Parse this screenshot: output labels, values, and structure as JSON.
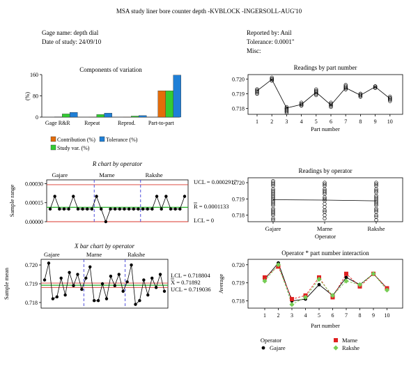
{
  "header": {
    "title": "MSA study liner bore counter depth -KVBLOCK -INGERSOLL-AUG'10",
    "gage_name": "Gage name: depth dial",
    "date_of_study": "Date of study: 24/09/10",
    "reported_by": "Reported by: Anil",
    "tolerance": "Tolerance: 0.0001\"",
    "misc": "Misc:"
  },
  "colors": {
    "contribution": "#e36c0a",
    "study_var": "#33cc33",
    "tolerance": "#1f7fd6",
    "control_limit": "#d9342b",
    "center_line": "#22aa22",
    "divider": "#3a3ad6",
    "marne": "#e02020",
    "rakshe": "#77cc55"
  },
  "chart_data": [
    {
      "id": "components",
      "type": "bar",
      "title": "Components of variation",
      "ylabel": "(%)",
      "ylim": [
        0,
        160
      ],
      "yticks": [
        "0",
        "80",
        "160"
      ],
      "categories": [
        "Gage R&R",
        "Repeat",
        "Reprod.",
        "Part-to-part"
      ],
      "series": [
        {
          "name": "Contribution (%)",
          "color_key": "contribution",
          "values": [
            1,
            0.5,
            0.3,
            99
          ]
        },
        {
          "name": "Study var. (%)",
          "color_key": "study_var",
          "values": [
            12,
            10,
            4,
            99
          ]
        },
        {
          "name": "Tolerance (%)",
          "color_key": "tolerance",
          "values": [
            18,
            15,
            6,
            158
          ]
        }
      ]
    },
    {
      "id": "readings_by_part",
      "type": "scatter",
      "title": "Readings by part number",
      "xlabel": "Part number",
      "xticks": [
        "1",
        "2",
        "3",
        "4",
        "5",
        "6",
        "7",
        "8",
        "9",
        "10"
      ],
      "yticks": [
        "0.718",
        "0.719",
        "0.720"
      ],
      "ylim": [
        0.7176,
        0.7203
      ],
      "means": [
        0.7192,
        0.71997,
        0.71803,
        0.71827,
        0.7191,
        0.71823,
        0.7194,
        0.7189,
        0.71947,
        0.71867
      ],
      "points": [
        [
          0.719,
          0.7191,
          0.7192,
          0.7192,
          0.7193,
          0.7193,
          0.7192,
          0.7191,
          0.719
        ],
        [
          0.7199,
          0.72,
          0.72,
          0.7201,
          0.7199,
          0.72,
          0.7199,
          0.72,
          0.72
        ],
        [
          0.7177,
          0.7178,
          0.7179,
          0.718,
          0.718,
          0.7181,
          0.7178,
          0.7179,
          0.718
        ],
        [
          0.7182,
          0.7183,
          0.7183,
          0.7182,
          0.7184,
          0.7183,
          0.7182,
          0.7183,
          0.7182
        ],
        [
          0.7189,
          0.719,
          0.7191,
          0.7192,
          0.7193,
          0.7192,
          0.7191,
          0.719,
          0.7192
        ],
        [
          0.7181,
          0.7182,
          0.7182,
          0.7183,
          0.7182,
          0.7183,
          0.7182,
          0.7184,
          0.7183
        ],
        [
          0.7193,
          0.7194,
          0.7195,
          0.7194,
          0.7195,
          0.7193,
          0.7194,
          0.7196,
          0.7194
        ],
        [
          0.7188,
          0.7189,
          0.719,
          0.7189,
          0.7188,
          0.719,
          0.7189,
          0.7188,
          0.7189
        ],
        [
          0.7194,
          0.7195,
          0.7194,
          0.7195,
          0.7194,
          0.7195,
          0.7194,
          0.7195,
          0.7195
        ],
        [
          0.7185,
          0.7186,
          0.7187,
          0.7187,
          0.7186,
          0.7187,
          0.7186,
          0.7188,
          0.7187
        ]
      ]
    },
    {
      "id": "r_chart",
      "type": "line",
      "title": "R chart by operator",
      "ylabel": "Sample range",
      "ylim": [
        0,
        0.00033
      ],
      "yticks": [
        "0.00000",
        "0.00015",
        "0.00030"
      ],
      "ytick_values": [
        0,
        0.00015,
        0.0003
      ],
      "operators": [
        "Gajare",
        "Marne",
        "Rakshe"
      ],
      "ucl": 0.0002917,
      "center": 0.0001133,
      "lcl": 0,
      "ucl_label": "UCL = 0.0002917",
      "center_label": "R = 0.0001133",
      "lcl_label": "LCL = 0",
      "values": [
        0.0001,
        0.0002,
        0.0001,
        0.0001,
        0.0001,
        0.0002,
        0.0001,
        0.0001,
        0.0001,
        0.0001,
        0.0002,
        0.0001,
        0,
        0.0001,
        0.0001,
        0.0001,
        0.0001,
        0.0001,
        0.0001,
        0.0001,
        0.0001,
        0.0001,
        0.0001,
        0.0002,
        0.0001,
        0.0002,
        0.0001,
        0.0001,
        0.0001,
        0.0002
      ]
    },
    {
      "id": "xbar_chart",
      "type": "line",
      "title": "X bar chart by operator",
      "ylabel": "Sample mean",
      "ylim": [
        0.7177,
        0.7203
      ],
      "yticks": [
        "0.718",
        "0.719",
        "0.720"
      ],
      "ytick_values": [
        0.718,
        0.719,
        0.72
      ],
      "operators": [
        "Gajare",
        "Marne",
        "Rakshe"
      ],
      "ucl": 0.719036,
      "center": 0.71892,
      "lcl": 0.718804,
      "lcl_label": "LCL = 0.718804",
      "center_label": "X = 0.71892",
      "ucl_label": "UCL = 0.719036",
      "values": [
        0.7192,
        0.7201,
        0.7182,
        0.7183,
        0.7193,
        0.7184,
        0.7196,
        0.7189,
        0.7195,
        0.7187,
        0.7193,
        0.7199,
        0.7181,
        0.7181,
        0.719,
        0.7182,
        0.7194,
        0.7189,
        0.7195,
        0.7186,
        0.7191,
        0.72,
        0.7179,
        0.7181,
        0.7192,
        0.7184,
        0.7193,
        0.7188,
        0.7195,
        0.7186
      ]
    },
    {
      "id": "readings_by_operator",
      "type": "scatter",
      "title": "Readings by operator",
      "xlabel": "Operator",
      "categories": [
        "Gajare",
        "Marne",
        "Rakshe"
      ],
      "yticks": [
        "0.718",
        "0.719",
        "0.720"
      ],
      "ylim": [
        0.7176,
        0.7203
      ],
      "means": [
        0.71895,
        0.71893,
        0.71888
      ],
      "points": [
        [
          0.7177,
          0.7178,
          0.718,
          0.7181,
          0.7182,
          0.7183,
          0.7184,
          0.7186,
          0.7187,
          0.7188,
          0.7189,
          0.719,
          0.7191,
          0.7192,
          0.7193,
          0.7194,
          0.7195,
          0.7196,
          0.7198,
          0.7199,
          0.72,
          0.7201
        ],
        [
          0.7178,
          0.718,
          0.7182,
          0.7183,
          0.7185,
          0.7187,
          0.7189,
          0.719,
          0.7191,
          0.7193,
          0.7194,
          0.7195,
          0.7196,
          0.7198,
          0.7199,
          0.72
        ],
        [
          0.7177,
          0.7179,
          0.718,
          0.7182,
          0.7183,
          0.7184,
          0.7186,
          0.7187,
          0.7188,
          0.7189,
          0.719,
          0.7191,
          0.7192,
          0.7194,
          0.7195,
          0.7196,
          0.7198,
          0.7199,
          0.72
        ]
      ]
    },
    {
      "id": "interaction",
      "type": "line",
      "title": "Operator * part number interaction",
      "xlabel": "Part number",
      "ylabel": "Average",
      "xticks": [
        "1",
        "2",
        "3",
        "4",
        "5",
        "6",
        "7",
        "8",
        "9",
        "10"
      ],
      "yticks": [
        "0.718",
        "0.719",
        "0.720"
      ],
      "ylim": [
        0.7176,
        0.7203
      ],
      "legend_title": "Operator",
      "series": [
        {
          "name": "Gajare",
          "marker": "circle",
          "color_key": "black",
          "values": [
            0.7192,
            0.7201,
            0.718,
            0.7181,
            0.7189,
            0.7183,
            0.7193,
            0.7189,
            0.7195,
            0.7187
          ]
        },
        {
          "name": "Marne",
          "marker": "square",
          "color_key": "marne",
          "values": [
            0.7193,
            0.7199,
            0.7181,
            0.7183,
            0.7193,
            0.7182,
            0.7195,
            0.7188,
            0.7195,
            0.7187
          ]
        },
        {
          "name": "Rakshe",
          "marker": "diamond",
          "color_key": "rakshe",
          "values": [
            0.7191,
            0.72,
            0.7178,
            0.7182,
            0.7192,
            0.7183,
            0.7191,
            0.7189,
            0.7195,
            0.7186
          ]
        }
      ]
    }
  ]
}
